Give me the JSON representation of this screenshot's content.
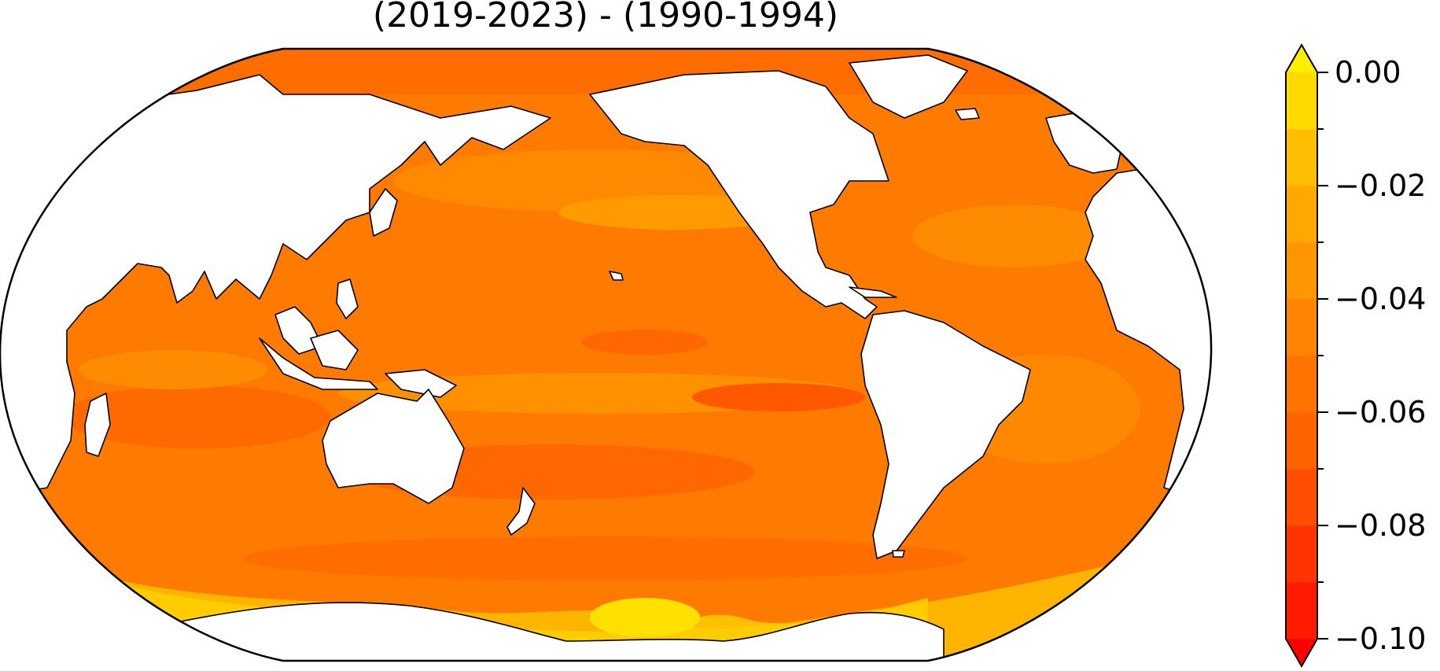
{
  "title": "(2019-2023) - (1990-1994)",
  "colorbar": {
    "min": -0.1,
    "max": 0.0,
    "extend": "both",
    "levels": [
      -0.1,
      -0.09,
      -0.08,
      -0.07,
      -0.06,
      -0.05,
      -0.04,
      -0.03,
      -0.02,
      -0.01,
      0.0
    ],
    "colors": [
      "#ff1a00",
      "#ff3400",
      "#ff4e00",
      "#ff6300",
      "#ff7400",
      "#ff8400",
      "#ff9500",
      "#ffa800",
      "#ffbf00",
      "#ffd900"
    ],
    "under_color": "#ff0000",
    "over_color": "#ffee00",
    "ticks": [
      {
        "value": 0.0,
        "label": "0.00"
      },
      {
        "value": -0.02,
        "label": "−0.02"
      },
      {
        "value": -0.04,
        "label": "−0.04"
      },
      {
        "value": -0.06,
        "label": "−0.06"
      },
      {
        "value": -0.08,
        "label": "−0.08"
      },
      {
        "value": -0.1,
        "label": "−0.10"
      }
    ]
  },
  "map": {
    "projection": "robinson",
    "central_longitude": 180,
    "ocean_base_color": "#ff7a00",
    "land_color": "#ffffff",
    "coastline_color": "#000000"
  }
}
